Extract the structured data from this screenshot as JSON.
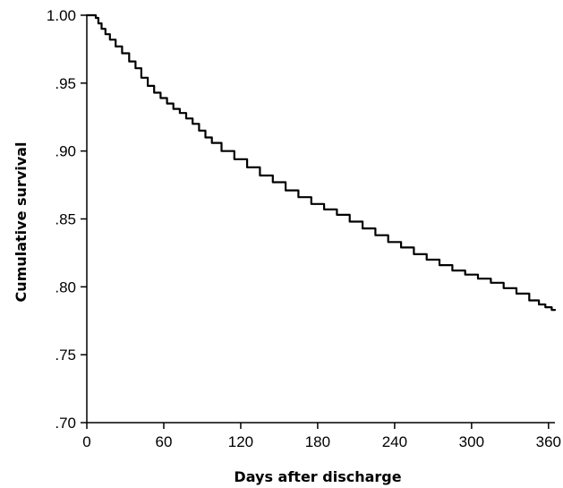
{
  "chart_data": {
    "type": "line",
    "title": "",
    "xlabel": "Days after discharge",
    "ylabel": "Cumulative survival",
    "xlim": [
      0,
      365
    ],
    "ylim": [
      0.7,
      1.0
    ],
    "x_ticks": [
      0,
      60,
      120,
      180,
      240,
      300,
      360
    ],
    "x_tick_labels": [
      "0",
      "60",
      "120",
      "180",
      "240",
      "300",
      "360"
    ],
    "y_ticks": [
      0.7,
      0.75,
      0.8,
      0.85,
      0.9,
      0.95,
      1.0
    ],
    "y_tick_labels": [
      ".70",
      ".75",
      ".80",
      ".85",
      ".90",
      ".95",
      "1.00"
    ],
    "grid": false,
    "legend": "none",
    "line_color": "#000000",
    "series": [
      {
        "x": [
          0,
          3,
          6,
          8,
          10,
          13,
          16,
          20,
          25,
          30,
          36,
          40,
          45,
          50,
          55,
          60,
          65,
          70,
          75,
          80,
          85,
          90,
          95,
          100,
          110,
          120,
          130,
          140,
          150,
          160,
          170,
          180,
          190,
          200,
          210,
          220,
          230,
          240,
          250,
          260,
          270,
          280,
          290,
          300,
          310,
          320,
          330,
          340,
          350,
          355,
          360,
          365
        ],
        "values": [
          1.0,
          1.0,
          1.0,
          0.998,
          0.994,
          0.99,
          0.986,
          0.982,
          0.977,
          0.972,
          0.966,
          0.961,
          0.954,
          0.948,
          0.943,
          0.939,
          0.935,
          0.931,
          0.928,
          0.924,
          0.92,
          0.915,
          0.91,
          0.906,
          0.9,
          0.894,
          0.888,
          0.882,
          0.877,
          0.871,
          0.866,
          0.861,
          0.857,
          0.853,
          0.848,
          0.843,
          0.838,
          0.833,
          0.829,
          0.824,
          0.82,
          0.816,
          0.812,
          0.809,
          0.806,
          0.803,
          0.799,
          0.795,
          0.79,
          0.787,
          0.785,
          0.783
        ]
      }
    ]
  }
}
